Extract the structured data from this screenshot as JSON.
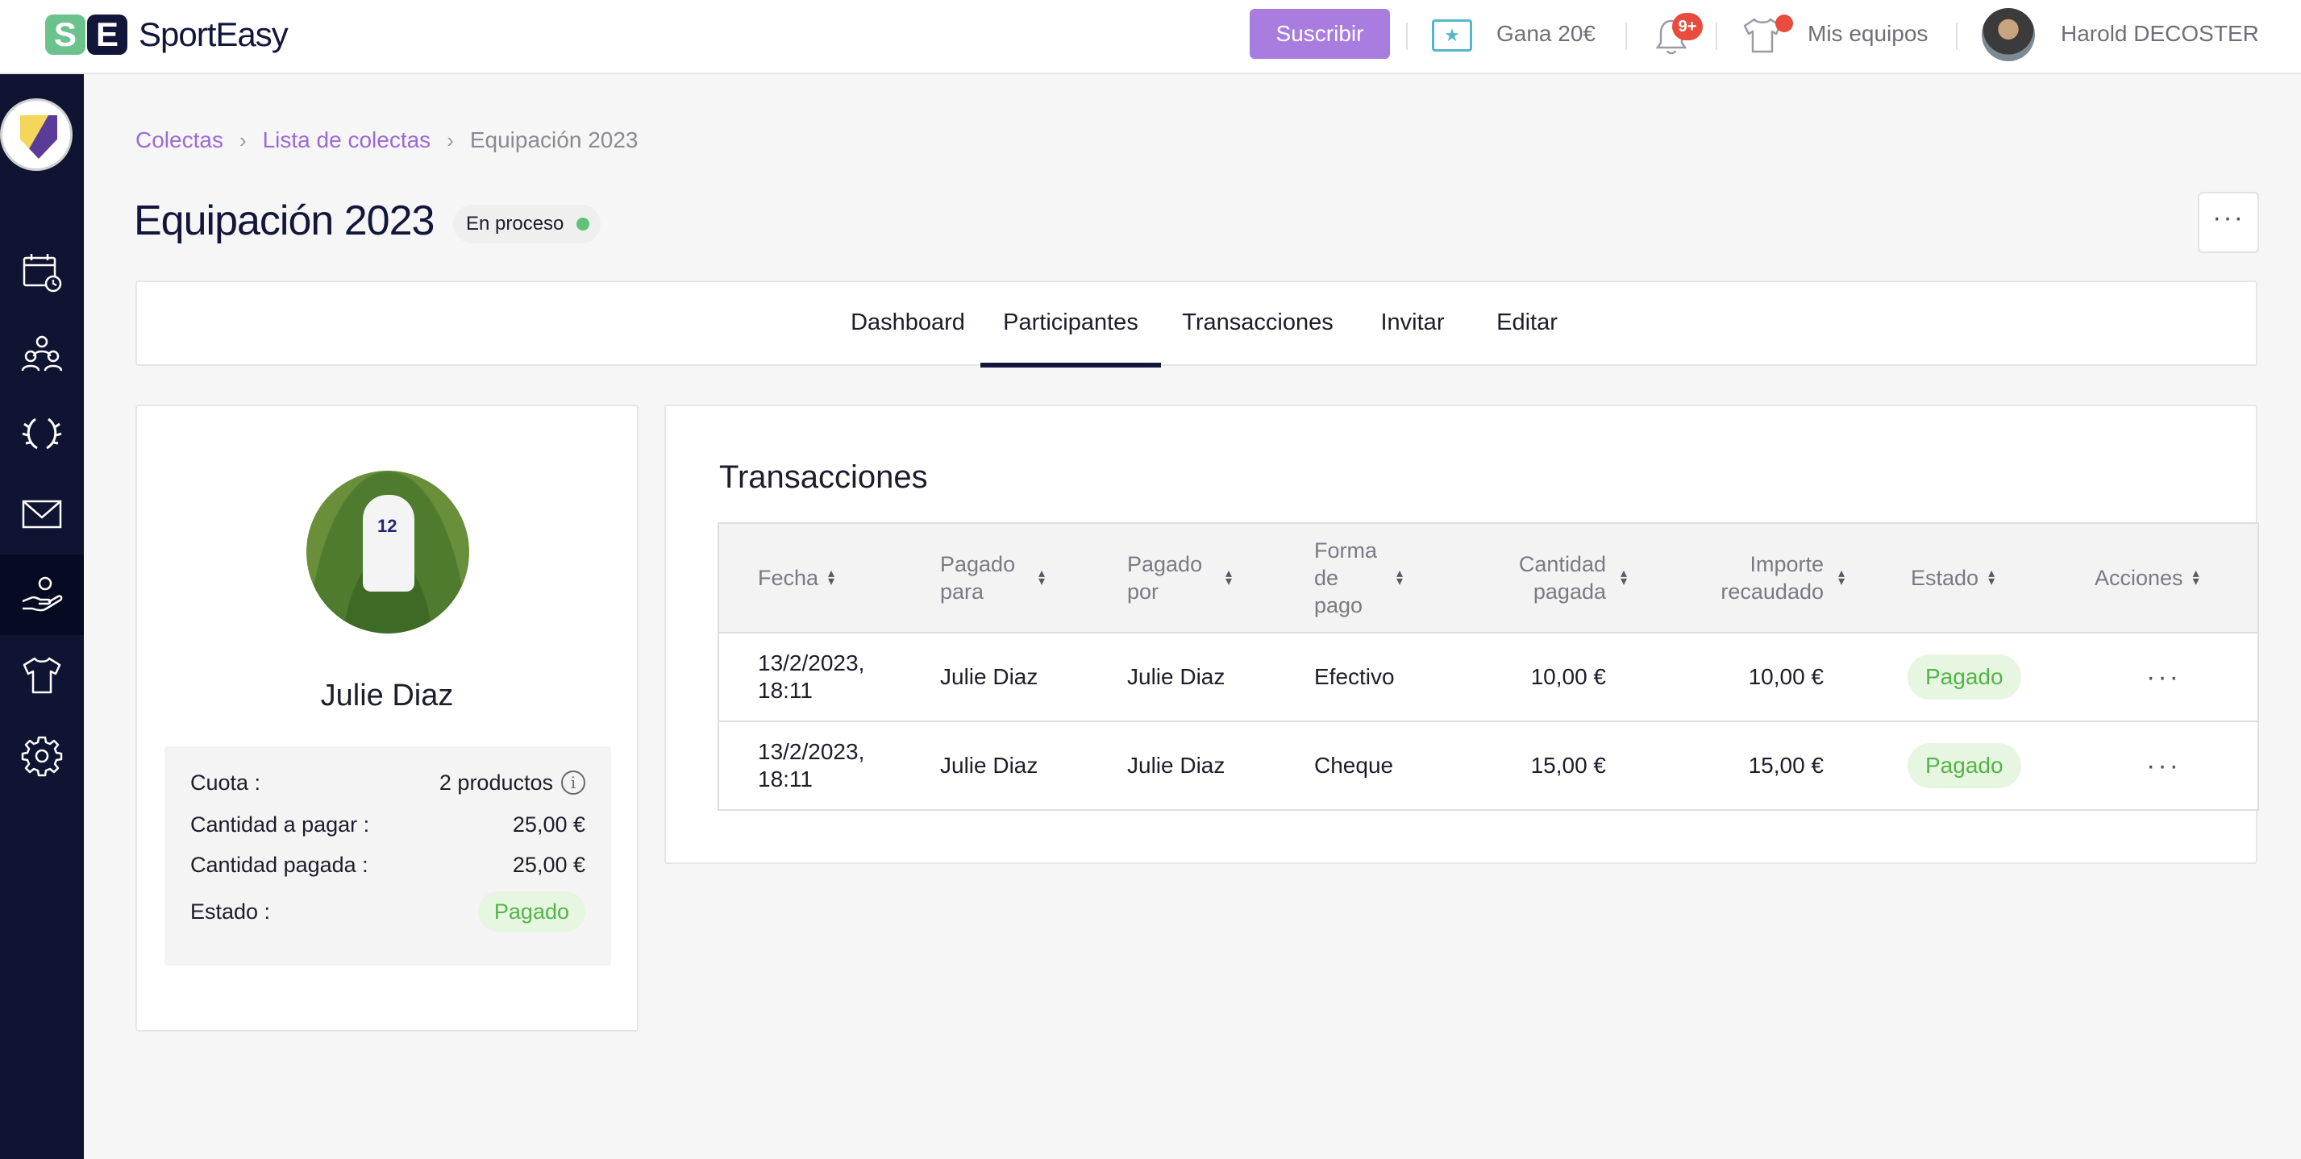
{
  "app": {
    "logo_mark_left": "S",
    "logo_mark_right": "E",
    "logo_text": "SportEasy"
  },
  "topbar": {
    "subscribe_label": "Suscribir",
    "earn_label": "Gana 20€",
    "notifications_badge": "9+",
    "teams_label": "Mis equipos",
    "user_name": "Harold DECOSTER"
  },
  "breadcrumb": {
    "items": [
      "Colectas",
      "Lista de colectas",
      "Equipación 2023"
    ]
  },
  "page": {
    "title": "Equipación 2023",
    "status": "En proceso",
    "more_label": "···"
  },
  "tabs": [
    "Dashboard",
    "Participantes",
    "Transacciones",
    "Invitar",
    "Editar"
  ],
  "active_tab": "Participantes",
  "participant": {
    "name": "Julie Diaz",
    "jersey_number": "12",
    "rows": [
      {
        "label": "Cuota :",
        "value": "2 productos"
      },
      {
        "label": "Cantidad a pagar :",
        "value": "25,00 €"
      },
      {
        "label": "Cantidad pagada :",
        "value": "25,00 €"
      },
      {
        "label": "Estado :",
        "value": "Pagado"
      }
    ]
  },
  "transactions": {
    "title": "Transacciones",
    "columns": [
      "Fecha",
      "Pagado para",
      "Pagado por",
      "Forma de pago",
      "Cantidad pagada",
      "Importe recaudado",
      "Estado",
      "Acciones"
    ],
    "rows": [
      {
        "date": "13/2/2023, 18:11",
        "paid_for": "Julie Diaz",
        "paid_by": "Julie Diaz",
        "method": "Efectivo",
        "amount_paid": "10,00 €",
        "amount_collected": "10,00 €",
        "status": "Pagado",
        "actions": "···"
      },
      {
        "date": "13/2/2023, 18:11",
        "paid_for": "Julie Diaz",
        "paid_by": "Julie Diaz",
        "method": "Cheque",
        "amount_paid": "15,00 €",
        "amount_collected": "15,00 €",
        "status": "Pagado",
        "actions": "···"
      }
    ]
  },
  "colors": {
    "accent": "#a97ce0",
    "sidebar": "#0f1433",
    "paid_bg": "#e6f6e1",
    "paid_text": "#53b448",
    "status_dot": "#5ec27a"
  }
}
